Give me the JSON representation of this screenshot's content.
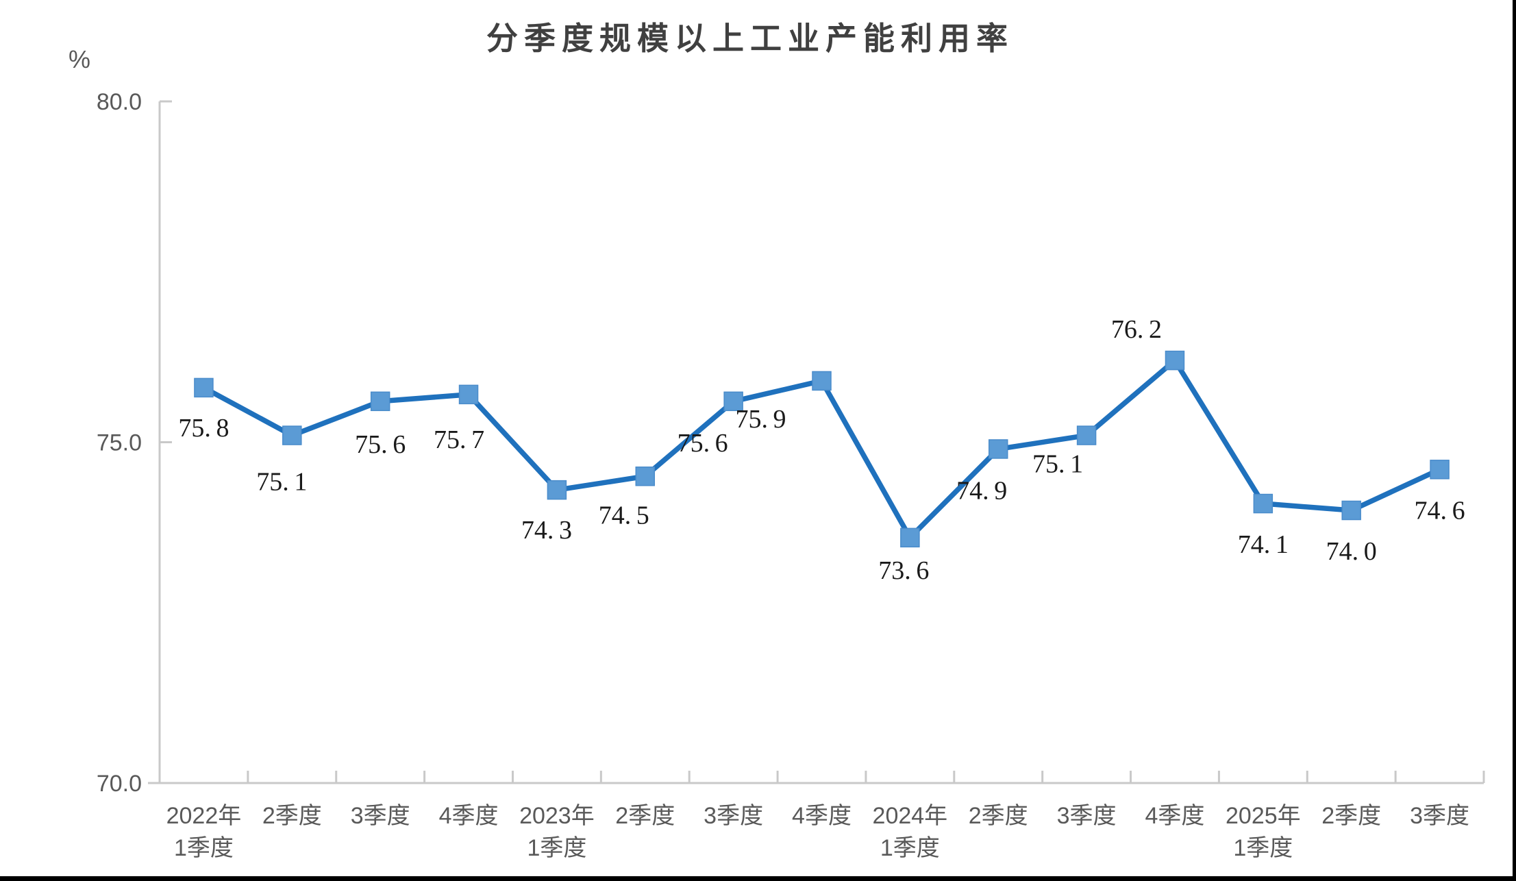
{
  "chart_data": {
    "type": "line",
    "title": "分季度规模以上工业产能利用率",
    "unit_label": "%",
    "categories": [
      "2022年\n1季度",
      "2季度",
      "3季度",
      "4季度",
      "2023年\n1季度",
      "2季度",
      "3季度",
      "4季度",
      "2024年\n1季度",
      "2季度",
      "3季度",
      "4季度",
      "2025年\n1季度",
      "2季度",
      "3季度"
    ],
    "values": [
      75.8,
      75.1,
      75.6,
      75.7,
      74.3,
      74.5,
      75.6,
      75.9,
      73.6,
      74.9,
      75.1,
      76.2,
      74.1,
      74.0,
      74.6
    ],
    "value_labels": [
      "75.8",
      "75.1",
      "75.6",
      "75.7",
      "74.3",
      "74.5",
      "75.6",
      "75.9",
      "73.6",
      "74.9",
      "75.1",
      "76.2",
      "74.1",
      "74.0",
      "74.6"
    ],
    "xlabel": "",
    "ylabel": "%",
    "ylim": [
      70.0,
      80.0
    ],
    "y_ticks": [
      70.0,
      75.0,
      80.0
    ],
    "y_tick_labels": [
      "70.0",
      "75.0",
      "80.0"
    ],
    "grid": false,
    "legend": "none",
    "colors": {
      "line": "#1F71BD",
      "marker_fill": "#5B9BD5",
      "axis": "#C9C9C9",
      "title_text": "#404040",
      "axis_text": "#595959",
      "data_label_text": "#1a1a1a"
    }
  }
}
